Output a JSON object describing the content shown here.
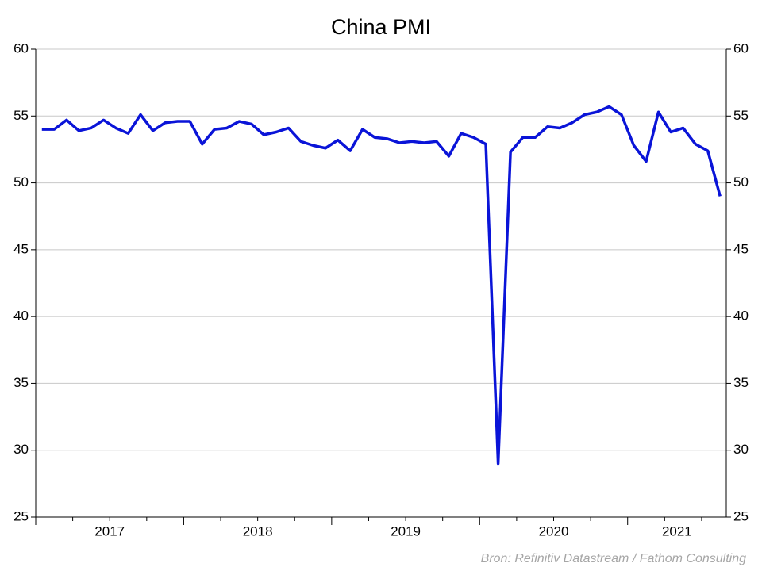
{
  "chart_data": {
    "type": "line",
    "title": "China PMI",
    "source": "Bron: Refinitiv Datastream / Fathom Consulting",
    "categories": [
      null,
      null,
      null,
      null,
      null,
      null,
      "2017",
      null,
      null,
      null,
      null,
      null,
      null,
      null,
      null,
      null,
      null,
      null,
      "2018",
      null,
      null,
      null,
      null,
      null,
      null,
      null,
      null,
      null,
      null,
      null,
      "2019",
      null,
      null,
      null,
      null,
      null,
      null,
      null,
      null,
      null,
      null,
      null,
      "2020",
      null,
      null,
      null,
      null,
      null,
      null,
      null,
      null,
      null,
      "2021",
      null,
      null,
      null
    ],
    "series": [
      {
        "name": "China PMI",
        "color": "#0a14d8",
        "values": [
          54.0,
          54.0,
          54.7,
          53.9,
          54.1,
          54.7,
          54.1,
          53.7,
          55.1,
          53.9,
          54.5,
          54.6,
          54.6,
          52.9,
          54.0,
          54.1,
          54.6,
          54.4,
          53.6,
          53.8,
          54.1,
          53.1,
          52.8,
          52.6,
          53.2,
          52.4,
          54.0,
          53.4,
          53.3,
          53.0,
          53.1,
          53.0,
          53.1,
          52.0,
          53.7,
          53.4,
          52.9,
          29.0,
          52.3,
          53.4,
          53.4,
          54.2,
          54.1,
          54.5,
          55.1,
          55.3,
          55.7,
          55.1,
          52.8,
          51.6,
          55.3,
          53.8,
          54.1,
          52.9,
          52.4,
          49.0
        ]
      }
    ],
    "ylim": [
      25,
      60
    ],
    "yticks": [
      25,
      30,
      35,
      40,
      45,
      50,
      55,
      60
    ],
    "y2lim": [
      25,
      60
    ],
    "y2ticks": [
      25,
      30,
      35,
      40,
      45,
      50,
      55,
      60
    ],
    "grid": true
  }
}
